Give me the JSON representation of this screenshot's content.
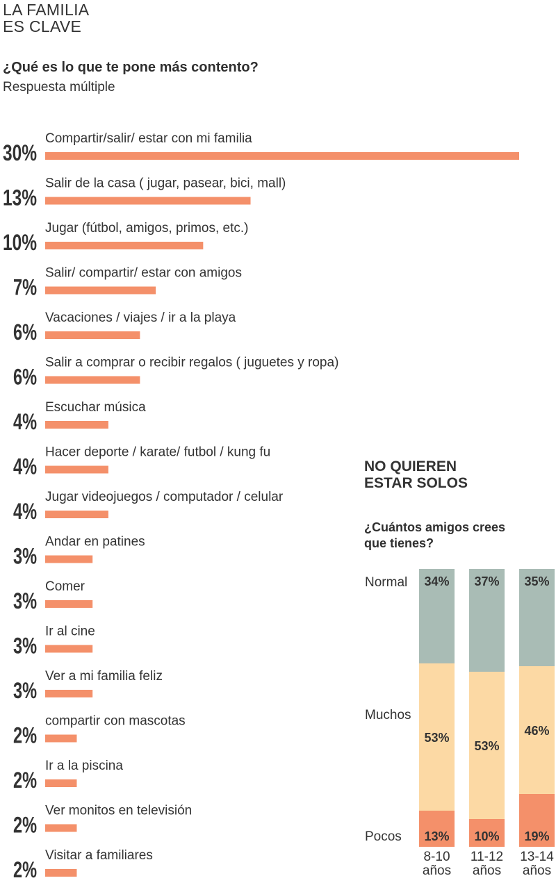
{
  "title_line1": "LA FAMILIA",
  "title_line2": "ES CLAVE",
  "question": "¿Qué es lo que te pone más contento?",
  "note": "Respuesta múltiple",
  "panel": {
    "title_line1": "NO QUIEREN",
    "title_line2": "ESTAR SOLOS",
    "question": "¿Cuántos amigos crees que tienes?"
  },
  "colors": {
    "bar": "#f4906a",
    "normal": "#a9bcb5",
    "muchos": "#fcd9a4",
    "pocos": "#f4906a",
    "text": "#333333",
    "segment_label_light": "#ffffff",
    "segment_label_dark": "#333333"
  },
  "chart_data": [
    {
      "type": "bar",
      "orientation": "horizontal",
      "categories": [
        "Compartir/salir/ estar con mi familia",
        "Salir de la casa ( jugar, pasear, bici, mall)",
        "Jugar (fútbol, amigos, primos, etc.)",
        "Salir/ compartir/ estar con amigos",
        "Vacaciones / viajes / ir a la playa",
        "Salir a comprar o recibir regalos ( juguetes y ropa)",
        "Escuchar música",
        "Hacer deporte / karate/  futbol / kung fu",
        "Jugar videojuegos / computador / celular",
        "Andar en patines",
        "Comer",
        "Ir al cine",
        "Ver a mi familia feliz",
        "compartir con mascotas",
        "Ir a la piscina",
        "Ver monitos en televisión",
        "Visitar a familiares"
      ],
      "values": [
        30,
        13,
        10,
        7,
        6,
        6,
        4,
        4,
        4,
        3,
        3,
        3,
        3,
        2,
        2,
        2,
        2
      ],
      "labels": [
        "30%",
        "13%",
        "10%",
        "7%",
        "6%",
        "6%",
        "4%",
        "4%",
        "4%",
        "3%",
        "3%",
        "3%",
        "3%",
        "2%",
        "2%",
        "2%",
        "2%"
      ],
      "xlim": [
        0,
        30
      ]
    },
    {
      "type": "bar",
      "stacked": true,
      "categories": [
        "8-10 años",
        "11-12 años",
        "13-14 años"
      ],
      "category_lines": [
        [
          "8-10",
          "años"
        ],
        [
          "11-12",
          "años"
        ],
        [
          "13-14",
          "años"
        ]
      ],
      "series": [
        {
          "name": "Normal",
          "values": [
            34,
            37,
            35
          ],
          "labels": [
            "34%",
            "37%",
            "35%"
          ]
        },
        {
          "name": "Muchos",
          "values": [
            53,
            53,
            46
          ],
          "labels": [
            "53%",
            "53%",
            "46%"
          ]
        },
        {
          "name": "Pocos",
          "values": [
            13,
            10,
            19
          ],
          "labels": [
            "13%",
            "10%",
            "19%"
          ]
        }
      ],
      "ylim": [
        0,
        100
      ]
    }
  ]
}
